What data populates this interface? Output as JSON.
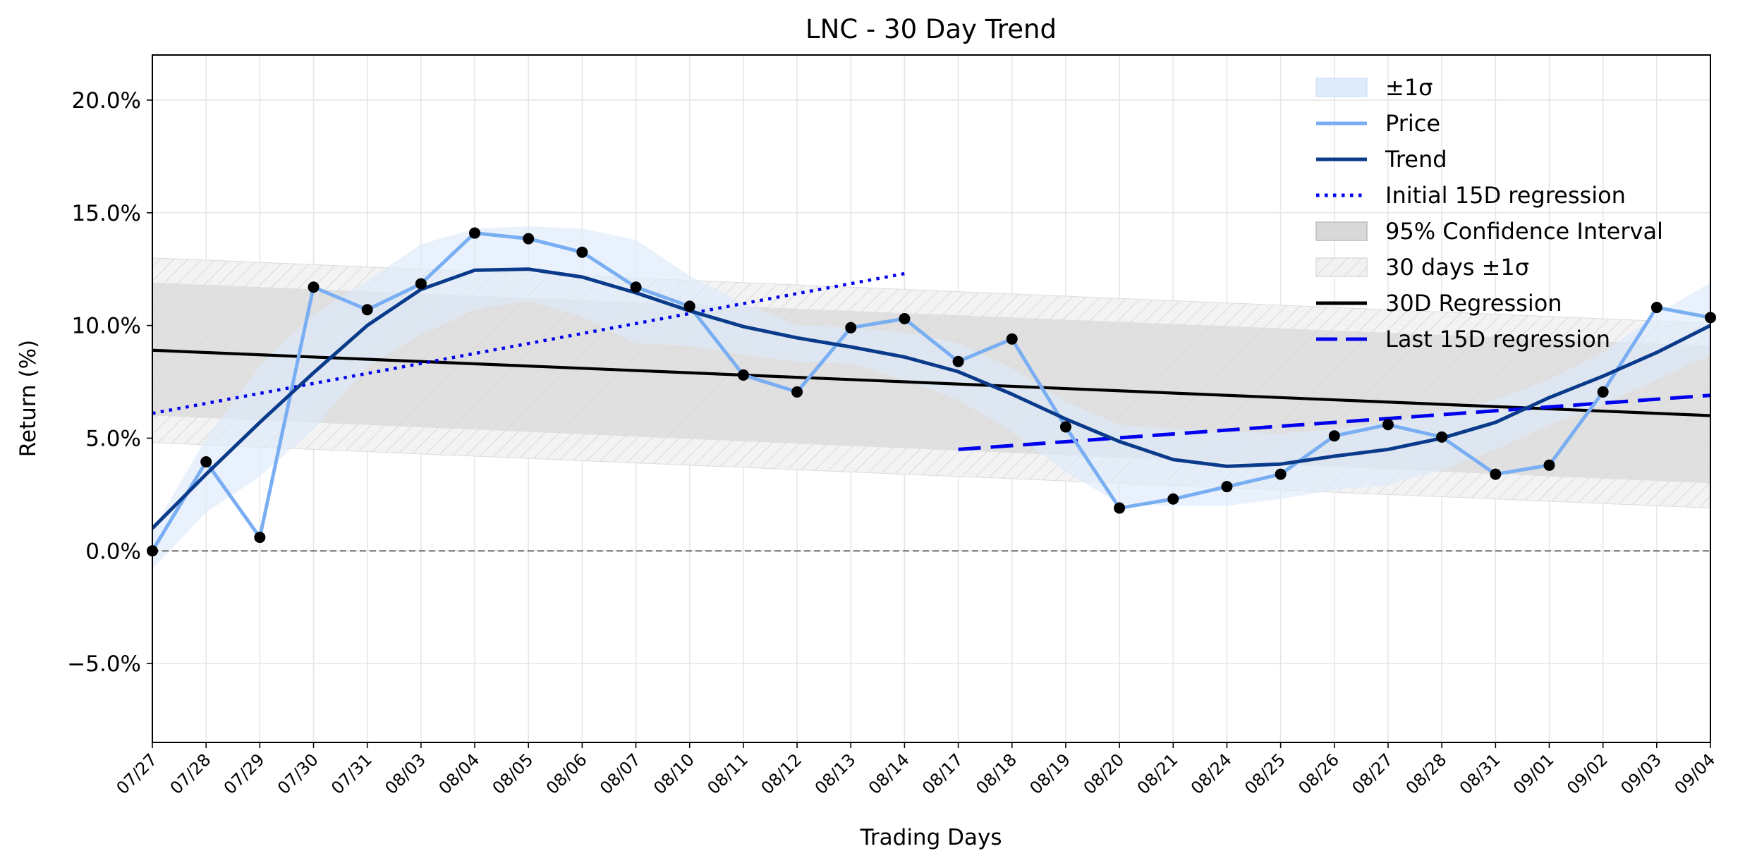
{
  "chart_data": {
    "type": "line",
    "title": "LNC - 30 Day Trend",
    "xlabel": "Trading Days",
    "ylabel": "Return (%)",
    "ylim": [
      -8.5,
      22
    ],
    "yticks": [
      -5,
      0,
      5,
      10,
      15,
      20
    ],
    "ytick_labels": [
      "−5.0%",
      "0.0%",
      "5.0%",
      "10.0%",
      "15.0%",
      "20.0%"
    ],
    "grid": true,
    "legend_position": "top-right",
    "categories": [
      "07/27",
      "07/28",
      "07/29",
      "07/30",
      "07/31",
      "08/03",
      "08/04",
      "08/05",
      "08/06",
      "08/07",
      "08/10",
      "08/11",
      "08/12",
      "08/13",
      "08/14",
      "08/17",
      "08/18",
      "08/19",
      "08/20",
      "08/21",
      "08/24",
      "08/25",
      "08/26",
      "08/27",
      "08/28",
      "08/31",
      "09/01",
      "09/02",
      "09/03",
      "09/04"
    ],
    "series": [
      {
        "name": "Price",
        "values": [
          0.0,
          3.95,
          0.6,
          11.7,
          10.7,
          11.85,
          14.1,
          13.85,
          13.25,
          11.7,
          10.85,
          7.8,
          7.05,
          9.9,
          10.3,
          8.4,
          9.4,
          5.5,
          1.9,
          2.3,
          2.85,
          3.4,
          5.1,
          5.6,
          5.05,
          3.4,
          3.8,
          7.05,
          10.8,
          10.35
        ],
        "color": "#7aaef2"
      },
      {
        "name": "Trend",
        "values": [
          1.0,
          3.4,
          5.7,
          7.9,
          10.0,
          11.6,
          12.45,
          12.5,
          12.15,
          11.45,
          10.65,
          9.95,
          9.45,
          9.05,
          8.6,
          7.95,
          6.95,
          5.85,
          4.85,
          4.05,
          3.75,
          3.85,
          4.2,
          4.5,
          5.0,
          5.7,
          6.8,
          7.75,
          8.8,
          10.0
        ],
        "color": "#0a3a8a"
      },
      {
        "name": "Initial 15D regression",
        "x_range": [
          "07/27",
          "08/14"
        ],
        "y_range": [
          6.1,
          12.3
        ],
        "style": "dotted",
        "color": "#0000ee"
      },
      {
        "name": "Last 15D regression",
        "x_range": [
          "08/17",
          "09/04"
        ],
        "y_range": [
          4.5,
          6.9
        ],
        "style": "dashed",
        "color": "#0000ee"
      },
      {
        "name": "30D Regression",
        "x_range": [
          "07/27",
          "09/04"
        ],
        "y_range": [
          8.9,
          6.0
        ],
        "color": "#000000"
      },
      {
        "name": "±1σ",
        "upper": [
          0.9,
          5.0,
          8.2,
          10.5,
          12.0,
          13.6,
          14.3,
          14.4,
          14.3,
          13.8,
          12.2,
          11.0,
          10.0,
          9.9,
          9.7,
          9.2,
          8.1,
          6.6,
          5.6,
          5.4,
          5.3,
          5.2,
          5.4,
          5.7,
          6.2,
          6.7,
          7.6,
          8.8,
          10.5,
          11.9
        ],
        "lower": [
          -0.8,
          1.7,
          3.3,
          5.4,
          8.2,
          9.6,
          10.7,
          11.1,
          10.4,
          9.2,
          9.1,
          8.7,
          8.4,
          8.3,
          7.6,
          6.7,
          5.3,
          3.5,
          2.1,
          2.0,
          2.0,
          2.3,
          2.7,
          2.9,
          3.6,
          4.5,
          5.6,
          6.5,
          7.6,
          8.7
        ],
        "color": "#ddebfb"
      },
      {
        "name": "95% Confidence Interval",
        "x_range": [
          "07/27",
          "09/04"
        ],
        "upper": [
          11.9,
          9.1
        ],
        "lower": [
          6.0,
          3.0
        ],
        "color": "#d9d9d9"
      },
      {
        "name": "30 days ±1σ",
        "x_range": [
          "07/27",
          "09/04"
        ],
        "upper": [
          13.0,
          10.1
        ],
        "lower": [
          4.8,
          1.9
        ],
        "color": "#f2f2f2"
      }
    ],
    "reference_line": {
      "y": 0,
      "style": "dashed",
      "color": "#808080"
    },
    "legend": [
      "±1σ",
      "Price",
      "Trend",
      "Initial 15D regression",
      "95% Confidence Interval",
      "30 days ±1σ",
      "30D Regression",
      "Last 15D regression"
    ]
  }
}
